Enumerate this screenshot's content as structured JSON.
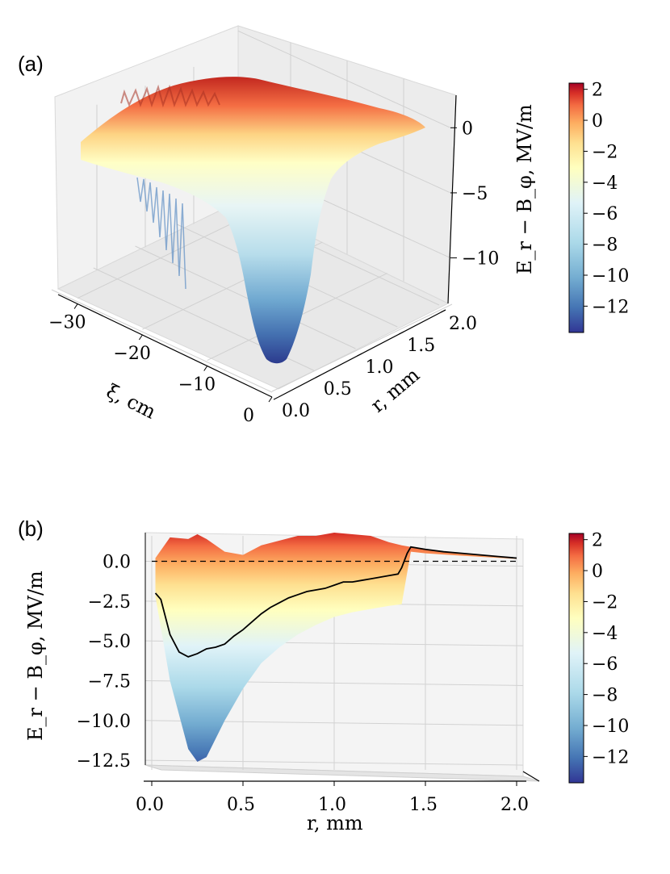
{
  "figure": {
    "panel_a_label": "(a)",
    "panel_b_label": "(b)"
  },
  "chart_data": [
    {
      "type": "surface3d",
      "panel": "(a)",
      "title": "",
      "xlabel": "ξ, cm",
      "ylabel": "r, mm",
      "zlabel": "E_r − B_φ, MV/m",
      "xlim": [
        -33,
        0
      ],
      "ylim": [
        0.0,
        2.0
      ],
      "zlim": [
        -13.5,
        2.5
      ],
      "xticks": [
        "−30",
        "−20",
        "−10",
        "0"
      ],
      "yticks": [
        "0.0",
        "0.5",
        "1.0",
        "1.5",
        "2.0"
      ],
      "zticks": [
        "0",
        "−5",
        "−10"
      ],
      "surface_min": -13.5,
      "surface_max": 2.4,
      "colorbar": {
        "colormap": "RdYlBu_r",
        "range": [
          -13.7,
          2.4
        ],
        "ticks": [
          "2",
          "0",
          "−2",
          "−4",
          "−6",
          "−8",
          "−10",
          "−12"
        ]
      }
    },
    {
      "type": "line",
      "panel": "(b)",
      "title": "",
      "xlabel": "r, mm",
      "ylabel": "E_r − B_φ, MV/m",
      "xlim": [
        0.0,
        2.0
      ],
      "ylim": [
        -12.8,
        1.8
      ],
      "xticks": [
        "0.0",
        "0.5",
        "1.0",
        "1.5",
        "2.0"
      ],
      "yticks": [
        "0.0",
        "−2.5",
        "−5.0",
        "−7.5",
        "−10.0",
        "−12.5"
      ],
      "series": [
        {
          "name": "profile",
          "color": "#000000",
          "x": [
            0.02,
            0.05,
            0.1,
            0.15,
            0.2,
            0.25,
            0.3,
            0.35,
            0.4,
            0.45,
            0.5,
            0.55,
            0.6,
            0.65,
            0.7,
            0.75,
            0.8,
            0.85,
            0.9,
            0.95,
            1.0,
            1.05,
            1.1,
            1.15,
            1.2,
            1.25,
            1.3,
            1.35,
            1.37,
            1.4,
            1.42,
            1.5,
            1.6,
            1.7,
            1.8,
            1.9,
            2.0
          ],
          "y": [
            -2.0,
            -2.4,
            -4.6,
            -5.7,
            -6.0,
            -5.8,
            -5.5,
            -5.4,
            -5.2,
            -4.7,
            -4.3,
            -3.8,
            -3.3,
            -2.9,
            -2.6,
            -2.3,
            -2.1,
            -1.9,
            -1.8,
            -1.7,
            -1.5,
            -1.3,
            -1.3,
            -1.2,
            -1.1,
            -1.0,
            -0.9,
            -0.8,
            -0.4,
            0.5,
            0.9,
            0.75,
            0.6,
            0.5,
            0.4,
            0.3,
            0.2
          ]
        },
        {
          "name": "zero",
          "style": "dashed",
          "color": "#000000",
          "x": [
            0.0,
            2.0
          ],
          "y": [
            0.0,
            0.0
          ]
        }
      ],
      "envelope": {
        "r": [
          0.02,
          0.1,
          0.2,
          0.25,
          0.3,
          0.4,
          0.5,
          0.6,
          0.7,
          0.8,
          0.9,
          1.0,
          1.1,
          1.2,
          1.3,
          1.37,
          1.42,
          1.5,
          1.7,
          2.0
        ],
        "max": [
          0.2,
          1.5,
          1.4,
          1.7,
          1.4,
          0.6,
          0.4,
          1.0,
          1.3,
          1.6,
          1.6,
          1.8,
          1.7,
          1.6,
          1.2,
          1.0,
          0.9,
          0.75,
          0.5,
          0.2
        ],
        "min": [
          -2.2,
          -7.5,
          -11.8,
          -12.6,
          -12.3,
          -10.0,
          -8.0,
          -6.4,
          -5.4,
          -4.6,
          -4.0,
          -3.5,
          -3.2,
          -3.0,
          -2.8,
          -2.7,
          0.6,
          0.5,
          0.35,
          0.15
        ]
      },
      "colorbar": {
        "colormap": "RdYlBu_r",
        "range": [
          -13.7,
          2.4
        ],
        "ticks": [
          "2",
          "0",
          "−2",
          "−4",
          "−6",
          "−8",
          "−10",
          "−12"
        ]
      }
    }
  ]
}
